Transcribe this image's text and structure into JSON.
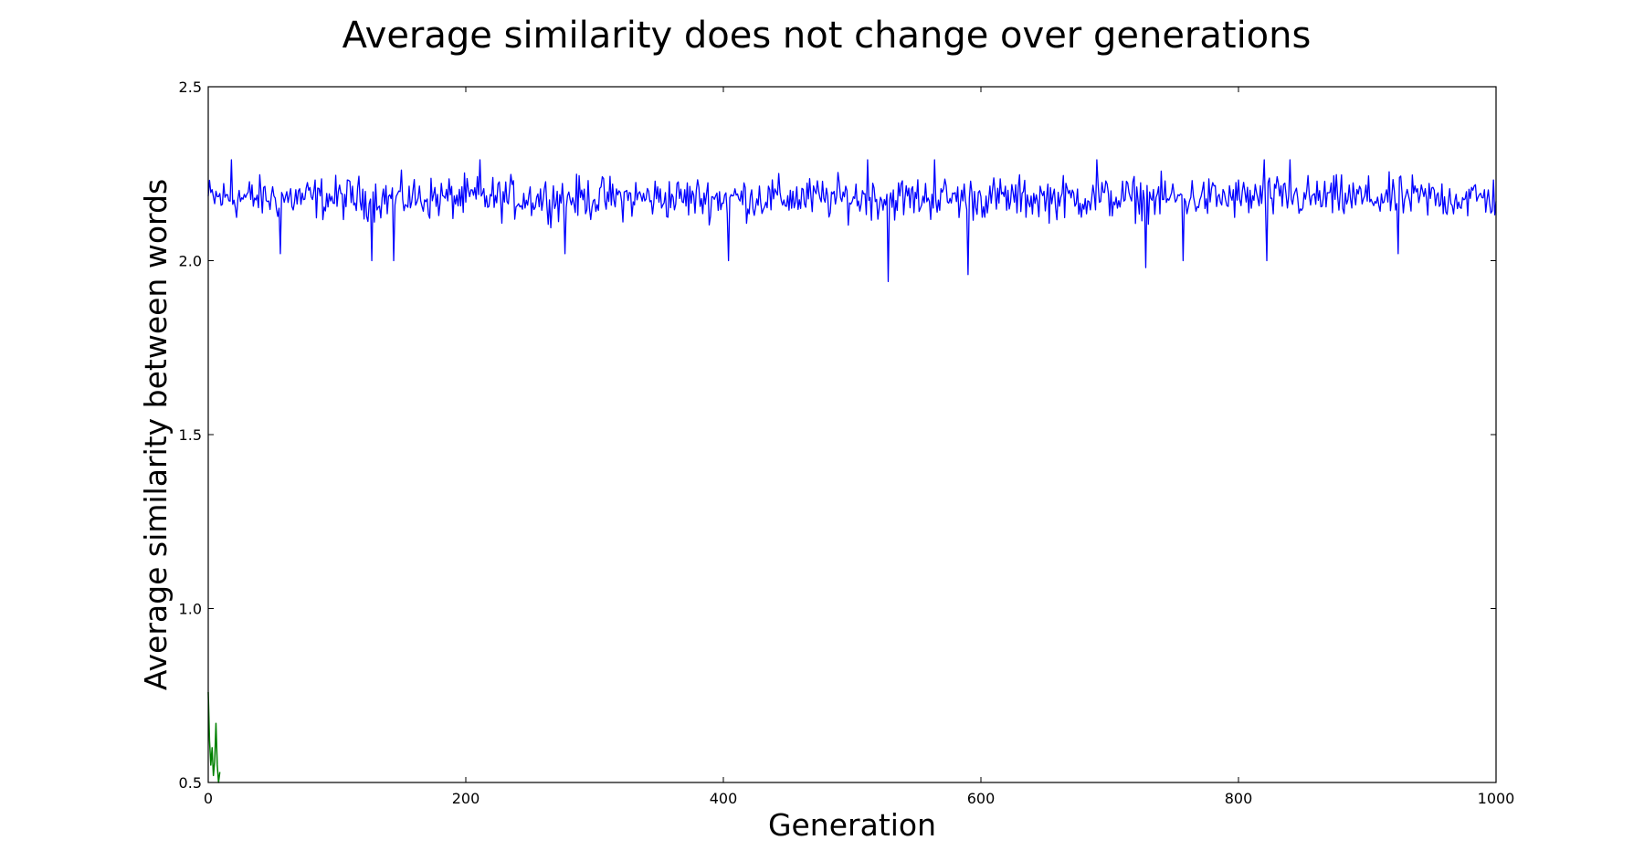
{
  "chart_data": {
    "type": "line",
    "title": "Average similarity does not change over generations",
    "xlabel": "Generation",
    "ylabel": "Average similarity between words",
    "xlim": [
      0,
      1000
    ],
    "ylim": [
      0.5,
      2.5
    ],
    "xticks": [
      "0",
      "200",
      "400",
      "600",
      "800",
      "1000"
    ],
    "yticks": [
      "0.5",
      "1.0",
      "1.5",
      "2.0",
      "2.5"
    ],
    "grid": false,
    "legend": "none",
    "series": [
      {
        "color": "#0000ff",
        "generations": [
          0,
          1000
        ],
        "mean": 2.19,
        "typical_low": 2.09,
        "typical_high": 2.27,
        "dips": [
          {
            "x": 56,
            "y": 2.02
          },
          {
            "x": 127,
            "y": 2.0
          },
          {
            "x": 144,
            "y": 2.0
          },
          {
            "x": 277,
            "y": 2.02
          },
          {
            "x": 404,
            "y": 2.0
          },
          {
            "x": 528,
            "y": 1.94
          },
          {
            "x": 590,
            "y": 1.96
          },
          {
            "x": 728,
            "y": 1.98
          },
          {
            "x": 757,
            "y": 2.0
          },
          {
            "x": 822,
            "y": 2.0
          },
          {
            "x": 924,
            "y": 2.02
          }
        ],
        "peaks": [
          {
            "x": 18,
            "y": 2.29
          },
          {
            "x": 211,
            "y": 2.29
          },
          {
            "x": 512,
            "y": 2.29
          },
          {
            "x": 564,
            "y": 2.29
          },
          {
            "x": 690,
            "y": 2.29
          },
          {
            "x": 820,
            "y": 2.29
          },
          {
            "x": 840,
            "y": 2.29
          }
        ]
      },
      {
        "color": "#008000",
        "x": [
          0,
          1,
          2,
          3,
          4,
          5,
          6,
          7,
          8,
          9
        ],
        "y": [
          0.76,
          0.62,
          0.55,
          0.6,
          0.52,
          0.56,
          0.67,
          0.55,
          0.5,
          0.53
        ]
      }
    ]
  }
}
